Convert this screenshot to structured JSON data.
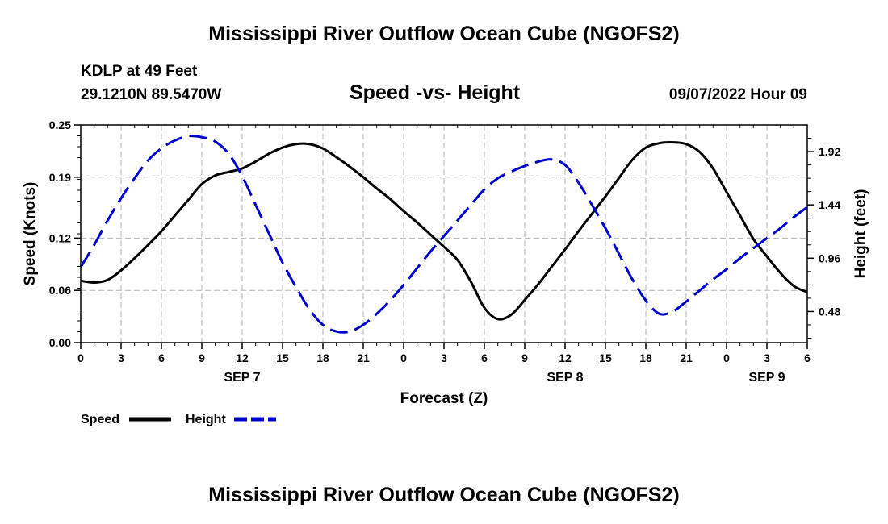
{
  "header": {
    "title": "Mississippi River Outflow Ocean Cube (NGOFS2)",
    "station": "KDLP at 49 Feet",
    "coords": "29.1210N  89.5470W",
    "subtitle": "Speed -vs- Height",
    "datetime": "09/07/2022 Hour 09"
  },
  "footer": {
    "title": "Mississippi River Outflow Ocean Cube (NGOFS2)"
  },
  "colors": {
    "speed": "#000000",
    "height": "#0000cc",
    "grid": "#b4b4b4"
  },
  "chart_data": {
    "type": "line",
    "title": "Speed -vs- Height",
    "xlabel": "Forecast (Z)",
    "ylabel": "Speed (Knots)",
    "y2label": "Height (feet)",
    "xlim": [
      0,
      54
    ],
    "ylim": [
      0,
      0.25
    ],
    "y2lim": [
      0.2,
      2.16
    ],
    "x_ticks": [
      0,
      3,
      6,
      9,
      12,
      15,
      18,
      21,
      24,
      27,
      30,
      33,
      36,
      39,
      42,
      45,
      48,
      51,
      54
    ],
    "x_tick_labels": [
      "0",
      "3",
      "6",
      "9",
      "12",
      "15",
      "18",
      "21",
      "0",
      "3",
      "6",
      "9",
      "12",
      "15",
      "18",
      "21",
      "0",
      "3",
      "6"
    ],
    "y_ticks": [
      0.0,
      0.06,
      0.12,
      0.19,
      0.25
    ],
    "y_tick_labels": [
      "0.00",
      "0.06",
      "0.12",
      "0.19",
      "0.25"
    ],
    "y2_ticks": [
      0.48,
      0.96,
      1.44,
      1.92
    ],
    "y2_tick_labels": [
      "0.48",
      "0.96",
      "1.44",
      "1.92"
    ],
    "date_labels": [
      {
        "x": 12,
        "label": "SEP 7"
      },
      {
        "x": 36,
        "label": "SEP 8"
      },
      {
        "x": 51,
        "label": "SEP 9"
      }
    ],
    "grid": true,
    "legend_position": "bottom-left",
    "series": [
      {
        "name": "Speed",
        "axis": "left",
        "style": "solid",
        "x": [
          0,
          1,
          2,
          3,
          4,
          5,
          6,
          7,
          8,
          9,
          10,
          11,
          12,
          13,
          14,
          15,
          16,
          17,
          18,
          19,
          20,
          21,
          22,
          23,
          24,
          25,
          26,
          27,
          28,
          29,
          30,
          31,
          32,
          33,
          34,
          35,
          36,
          37,
          38,
          39,
          40,
          41,
          42,
          43,
          44,
          45,
          46,
          47,
          48,
          49,
          50,
          51,
          52,
          53,
          54
        ],
        "values": [
          0.071,
          0.069,
          0.072,
          0.083,
          0.097,
          0.112,
          0.128,
          0.146,
          0.164,
          0.182,
          0.192,
          0.196,
          0.2,
          0.208,
          0.217,
          0.224,
          0.228,
          0.228,
          0.223,
          0.213,
          0.202,
          0.19,
          0.177,
          0.165,
          0.151,
          0.138,
          0.124,
          0.11,
          0.095,
          0.07,
          0.04,
          0.027,
          0.032,
          0.049,
          0.067,
          0.087,
          0.107,
          0.128,
          0.148,
          0.168,
          0.189,
          0.21,
          0.224,
          0.229,
          0.23,
          0.228,
          0.219,
          0.2,
          0.173,
          0.146,
          0.119,
          0.099,
          0.08,
          0.065,
          0.058
        ]
      },
      {
        "name": "Height",
        "axis": "right",
        "style": "dashed",
        "x": [
          0,
          1,
          2,
          3,
          4,
          5,
          6,
          7,
          8,
          9,
          10,
          11,
          12,
          13,
          14,
          15,
          16,
          17,
          18,
          19,
          20,
          21,
          22,
          23,
          24,
          25,
          26,
          27,
          28,
          29,
          30,
          31,
          32,
          33,
          34,
          35,
          36,
          37,
          38,
          39,
          40,
          41,
          42,
          43,
          44,
          45,
          46,
          47,
          48,
          49,
          50,
          51,
          52,
          53,
          54
        ],
        "values": [
          0.88,
          1.08,
          1.3,
          1.5,
          1.68,
          1.84,
          1.95,
          2.02,
          2.06,
          2.05,
          2.01,
          1.9,
          1.7,
          1.44,
          1.18,
          0.92,
          0.7,
          0.5,
          0.36,
          0.3,
          0.3,
          0.36,
          0.46,
          0.58,
          0.72,
          0.87,
          1.02,
          1.16,
          1.3,
          1.44,
          1.58,
          1.68,
          1.74,
          1.79,
          1.83,
          1.85,
          1.8,
          1.64,
          1.44,
          1.23,
          1.0,
          0.77,
          0.58,
          0.46,
          0.48,
          0.57,
          0.67,
          0.77,
          0.86,
          0.96,
          1.05,
          1.14,
          1.23,
          1.33,
          1.42
        ]
      }
    ]
  }
}
